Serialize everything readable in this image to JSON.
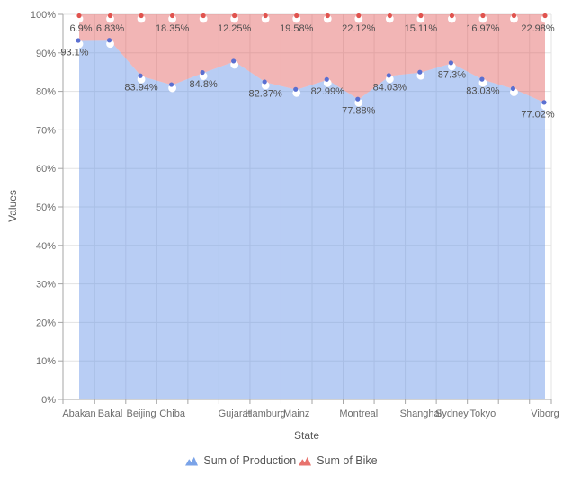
{
  "chart_data": {
    "type": "area",
    "stacking": "100%",
    "title": "",
    "xlabel": "State",
    "ylabel": "Values",
    "ylim": [
      0,
      100
    ],
    "grid": true,
    "markers": true,
    "legend_position": "bottom",
    "y_tick_labels": [
      "0%",
      "10%",
      "20%",
      "30%",
      "40%",
      "50%",
      "60%",
      "70%",
      "80%",
      "90%",
      "100%"
    ],
    "categories": [
      "Abakan",
      "Bakal",
      "Beijing",
      "Chiba",
      "",
      "Gujarat",
      "Hamburg",
      "Mainz",
      "",
      "Montreal",
      "",
      "Shanghai",
      "Sydney",
      "Tokyo",
      "",
      "Viborg"
    ],
    "series": [
      {
        "name": "Sum of Production",
        "color": "#6190E7",
        "legend_icon_color": "#7aa3e8",
        "marker_dot_color": "#5a6fd1",
        "fill_opacity": 0.45,
        "values": [
          93.1,
          93.17,
          83.94,
          81.65,
          84.8,
          87.75,
          82.37,
          80.42,
          82.99,
          77.88,
          84.03,
          84.89,
          87.3,
          83.03,
          80.6,
          77.02
        ],
        "labels": [
          "93.1%",
          "",
          "83.94%",
          "",
          "84.8%",
          "",
          "82.37%",
          "",
          "82.99%",
          "77.88%",
          "84.03%",
          "",
          "87.3%",
          "83.03%",
          "",
          "77.02%"
        ]
      },
      {
        "name": "Sum of Bike",
        "color": "#E25C5A",
        "legend_icon_color": "#e8736e",
        "marker_dot_color": "#e0534e",
        "fill_opacity": 0.45,
        "values": [
          6.9,
          6.83,
          16.06,
          18.35,
          15.2,
          12.25,
          17.63,
          19.58,
          17.01,
          22.12,
          15.97,
          15.11,
          12.7,
          16.97,
          19.4,
          22.98
        ],
        "labels": [
          "6.9%",
          "6.83%",
          "",
          "18.35%",
          "",
          "12.25%",
          "",
          "19.58%",
          "",
          "22.12%",
          "",
          "15.11%",
          "",
          "16.97%",
          "",
          "22.98%"
        ]
      }
    ],
    "colors": {
      "gridline": "#e3e3e3",
      "axis_line": "#a6a6a6",
      "tick_text": "#6e6e6e",
      "data_label_text": "#4e4e4e",
      "marker_fill": "#ffffff"
    }
  }
}
